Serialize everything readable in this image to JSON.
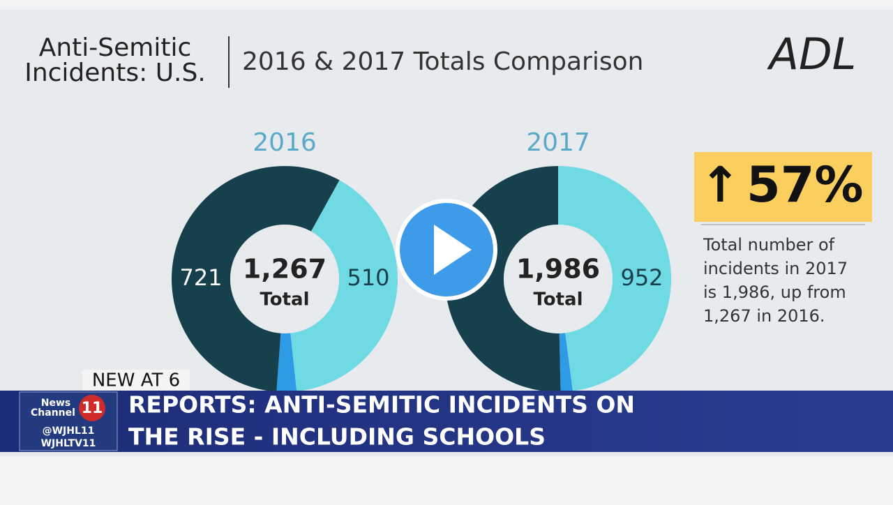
{
  "header": {
    "title_lines": [
      "Anti-Semitic",
      "Incidents: U.S."
    ],
    "subtitle": "2016 & 2017 Totals Comparison",
    "logo": "ADL"
  },
  "donuts": [
    {
      "year": "2016",
      "total": "1,267",
      "total_caption": "Total",
      "values": [
        721,
        510,
        36
      ],
      "start_angle": 29
    },
    {
      "year": "2017",
      "total": "1,986",
      "total_caption": "Total",
      "values": [
        1000,
        952,
        34
      ],
      "start_angle": 0
    }
  ],
  "colors": [
    "#17404d",
    "#6fd9e4",
    "#2e9be6"
  ],
  "callout": {
    "figure": "57%",
    "lines": [
      "Total number of",
      "incidents in 2017",
      "is 1,986, up from",
      "1,267 in 2016."
    ]
  },
  "lower_third": {
    "tag": "NEW AT 6",
    "headline_lines": [
      "REPORTS: ANTI-SEMITIC INCIDENTS ON",
      "THE RISE - INCLUDING SCHOOLS"
    ],
    "logo_lines": [
      "News",
      "Channel",
      "11"
    ],
    "handles": [
      "@WJHL11",
      "WJHLTV11"
    ]
  }
}
